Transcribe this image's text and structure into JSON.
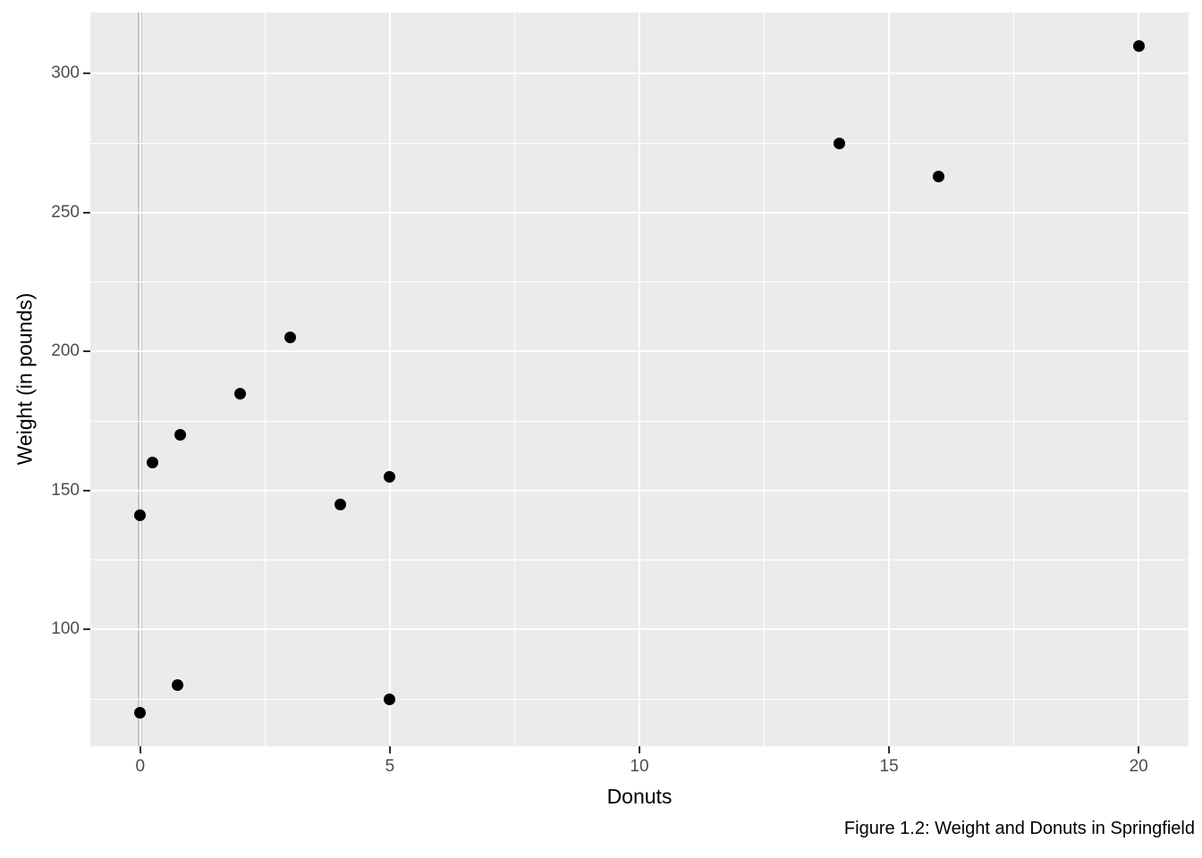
{
  "figure": {
    "caption": "Figure 1.2: Weight and Donuts in Springfield"
  },
  "chart_data": {
    "type": "scatter",
    "title": "",
    "xlabel": "Donuts",
    "ylabel": "Weight (in pounds)",
    "points": [
      {
        "x": 0,
        "y": 70
      },
      {
        "x": 0,
        "y": 141
      },
      {
        "x": 0.25,
        "y": 160
      },
      {
        "x": 0.75,
        "y": 80
      },
      {
        "x": 0.8,
        "y": 170
      },
      {
        "x": 2,
        "y": 185
      },
      {
        "x": 3,
        "y": 205
      },
      {
        "x": 4,
        "y": 145
      },
      {
        "x": 5,
        "y": 75
      },
      {
        "x": 5,
        "y": 155
      },
      {
        "x": 14,
        "y": 275
      },
      {
        "x": 16,
        "y": 263
      },
      {
        "x": 20,
        "y": 310
      }
    ],
    "xlim": [
      -1,
      21
    ],
    "ylim": [
      58,
      322
    ],
    "x_major_ticks": [
      "0",
      "5",
      "10",
      "15",
      "20"
    ],
    "x_major_values": [
      0,
      5,
      10,
      15,
      20
    ],
    "x_minor_gridlines": [
      2.5,
      7.5,
      12.5,
      17.5
    ],
    "y_major_ticks": [
      "100",
      "150",
      "200",
      "250",
      "300"
    ],
    "y_major_values": [
      100,
      150,
      200,
      250,
      300
    ],
    "y_minor_gridlines": [
      75,
      125,
      175,
      225,
      275
    ],
    "reference_line": {
      "axis": "x",
      "value": 0
    },
    "grid": true,
    "legend": "none",
    "theme": "ggplot-grey",
    "colors": {
      "panel_bg": "#ebebeb",
      "gridline": "#ffffff",
      "reference_line": "#c6c6c6",
      "point": "#000000",
      "tick_label": "#4d4d4d",
      "tick_mark": "#333333",
      "axis_title": "#000000",
      "caption": "#000000"
    }
  }
}
